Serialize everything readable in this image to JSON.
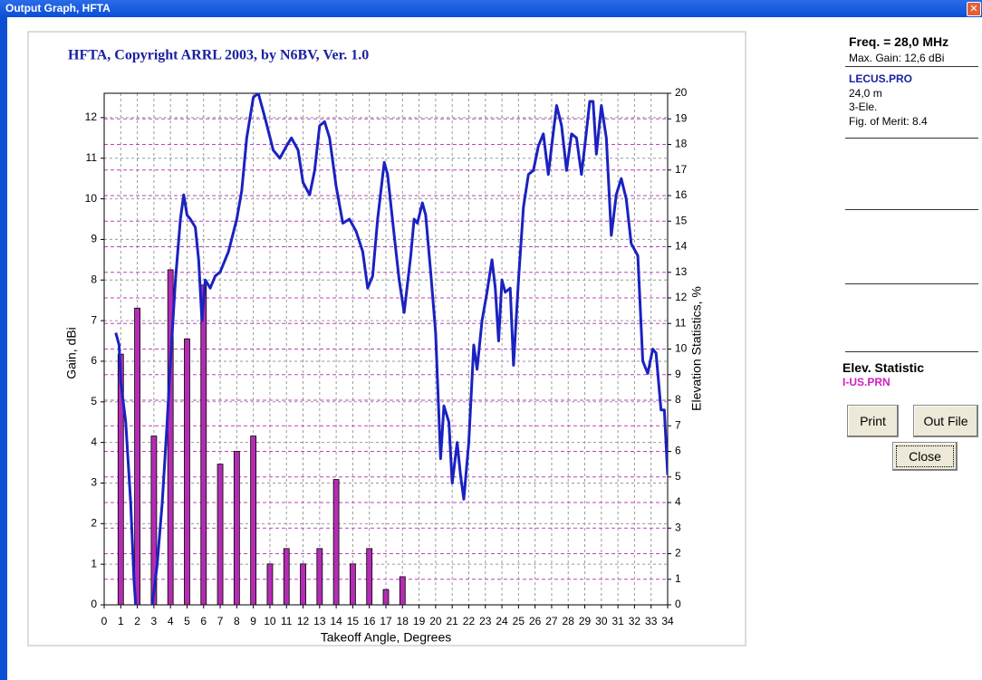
{
  "window": {
    "title": "Output Graph, HFTA"
  },
  "panel": {
    "freq": "Freq. = 28,0 MHz",
    "max_gain": "Max. Gain: 12,6 dBi",
    "file": "LECUS.PRO",
    "height": "24,0 m",
    "antenna": "3-Ele.",
    "merit": "Fig. of Merit: 8.4",
    "stat_title": "Elev. Statistic",
    "stat_file": "I-US.PRN"
  },
  "buttons": {
    "print": "Print",
    "out_file": "Out File",
    "close": "Close"
  },
  "chart_data": {
    "type": "combo",
    "title": "HFTA, Copyright ARRL 2003, by N6BV, Ver. 1.0",
    "x_label": "Takeoff Angle, Degrees",
    "y_label": "Gain, dBi",
    "y2_label": "Elevation Statistics, %",
    "xlim": [
      0,
      34
    ],
    "xticks": [
      0,
      1,
      2,
      3,
      4,
      5,
      6,
      7,
      8,
      9,
      10,
      11,
      12,
      13,
      14,
      15,
      16,
      17,
      18,
      19,
      20,
      21,
      22,
      23,
      24,
      25,
      26,
      27,
      28,
      29,
      30,
      31,
      32,
      33,
      34
    ],
    "ylim": [
      0,
      12.6
    ],
    "yticks": [
      0,
      1,
      2,
      3,
      4,
      5,
      6,
      7,
      8,
      9,
      10,
      11,
      12
    ],
    "y2lim": [
      0,
      20
    ],
    "y2ticks": [
      0,
      1,
      2,
      3,
      4,
      5,
      6,
      7,
      8,
      9,
      10,
      11,
      12,
      13,
      14,
      15,
      16,
      17,
      18,
      19,
      20
    ],
    "grid": true,
    "series": [
      {
        "type": "line",
        "color": "#1a22c0",
        "x": [
          0.7,
          0.9,
          1.0,
          1.3,
          1.6,
          1.8,
          1.9,
          2.4,
          2.9,
          3.2,
          3.5,
          3.8,
          4.0,
          4.3,
          4.6,
          4.8,
          5.0,
          5.2,
          5.5,
          5.7,
          5.9,
          6.1,
          6.4,
          6.7,
          7.0,
          7.5,
          8.0,
          8.3,
          8.6,
          9.0,
          9.3,
          9.7,
          10.2,
          10.6,
          11.0,
          11.3,
          11.7,
          12.0,
          12.4,
          12.7,
          13.0,
          13.3,
          13.6,
          14.0,
          14.4,
          14.8,
          15.2,
          15.6,
          15.9,
          16.2,
          16.5,
          16.9,
          17.1,
          17.5,
          17.8,
          18.1,
          18.5,
          18.7,
          18.9,
          19.2,
          19.4,
          19.7,
          20.0,
          20.3,
          20.5,
          20.8,
          21.0,
          21.3,
          21.5,
          21.7,
          22.0,
          22.3,
          22.5,
          22.8,
          23.1,
          23.4,
          23.6,
          23.8,
          24.0,
          24.2,
          24.5,
          24.7,
          25.0,
          25.3,
          25.6,
          25.9,
          26.2,
          26.5,
          26.8,
          27.0,
          27.3,
          27.6,
          27.9,
          28.2,
          28.5,
          28.8,
          29.0,
          29.3,
          29.5,
          29.7,
          30.0,
          30.3,
          30.6,
          30.9,
          31.2,
          31.5,
          31.8,
          32.2,
          32.5,
          32.8,
          33.1,
          33.3,
          33.6,
          33.8,
          34.0
        ],
        "values": [
          6.7,
          6.4,
          5.5,
          4.5,
          2.5,
          0.6,
          0.0,
          null,
          0.0,
          1.0,
          2.5,
          4.5,
          6.0,
          8.0,
          9.5,
          10.1,
          9.6,
          9.5,
          9.3,
          8.5,
          7.0,
          8.0,
          7.8,
          8.1,
          8.2,
          8.7,
          9.5,
          10.2,
          11.5,
          12.5,
          12.6,
          12.0,
          11.2,
          11.0,
          11.3,
          11.5,
          11.2,
          10.4,
          10.1,
          10.7,
          11.8,
          11.9,
          11.5,
          10.3,
          9.4,
          9.5,
          9.2,
          8.7,
          7.8,
          8.1,
          9.5,
          10.9,
          10.6,
          9.1,
          8.0,
          7.2,
          8.6,
          9.5,
          9.4,
          9.9,
          9.6,
          8.2,
          6.7,
          3.6,
          4.9,
          4.5,
          3.0,
          4.0,
          3.2,
          2.6,
          4.0,
          6.4,
          5.8,
          7.0,
          7.7,
          8.5,
          7.8,
          6.5,
          8.0,
          7.7,
          7.8,
          5.9,
          8.0,
          9.8,
          10.6,
          10.7,
          11.3,
          11.6,
          10.6,
          11.3,
          12.3,
          11.8,
          10.7,
          11.6,
          11.5,
          10.6,
          11.3,
          12.4,
          12.4,
          11.1,
          12.3,
          11.5,
          9.1,
          10.1,
          10.5,
          10.0,
          8.9,
          8.6,
          6.0,
          5.7,
          6.3,
          6.2,
          4.8,
          4.8,
          3.2
        ]
      },
      {
        "type": "bar",
        "axis": "y2",
        "color": "#b32cb3",
        "x": [
          1,
          2,
          3,
          4,
          5,
          6,
          7,
          8,
          9,
          10,
          11,
          12,
          13,
          14,
          15,
          16,
          17,
          18
        ],
        "values": [
          9.8,
          11.6,
          6.6,
          13.1,
          10.4,
          12.5,
          5.5,
          6.0,
          6.6,
          1.6,
          2.2,
          1.6,
          2.2,
          4.9,
          1.6,
          2.2,
          0.6,
          1.1
        ]
      }
    ]
  }
}
